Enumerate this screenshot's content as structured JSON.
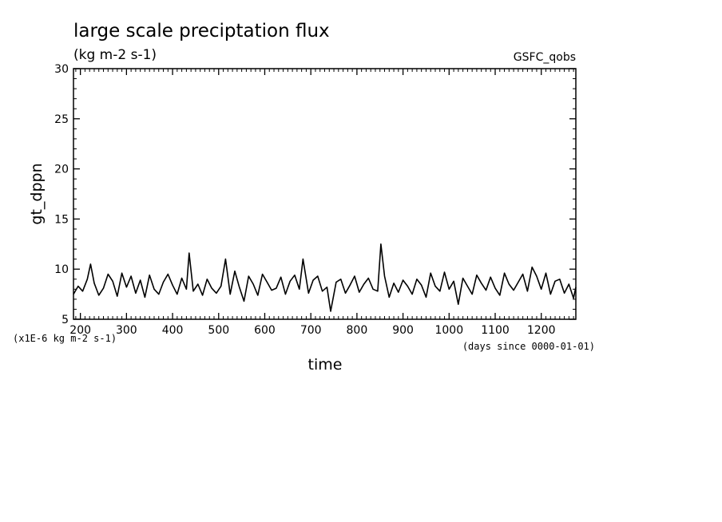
{
  "chart_data": {
    "type": "line",
    "title": "large scale preciptation flux",
    "subtitle": "(kg m-2 s-1)",
    "dataset_label": "GSFC_qobs",
    "xlabel": "time",
    "ylabel": "gt_dppn",
    "x_units_note": "(days since 0000-01-01)",
    "y_units_note": "(x1E-6 kg m-2 s-1)",
    "xlim": [
      185,
      1275
    ],
    "ylim": [
      5,
      30
    ],
    "x_ticks": [
      200,
      300,
      400,
      500,
      600,
      700,
      800,
      900,
      1000,
      1100,
      1200
    ],
    "x_tick_labels": [
      "200",
      "300",
      "400",
      "500",
      "600",
      "700",
      "800",
      "900",
      "1000",
      "1100",
      "1200"
    ],
    "y_ticks": [
      5,
      10,
      15,
      20,
      25,
      30
    ],
    "y_tick_labels": [
      "5",
      "10",
      "15",
      "20",
      "25",
      "30"
    ],
    "grid": false,
    "line_color": "#000000",
    "series": [
      {
        "x": [
          185,
          195,
          205,
          215,
          222,
          230,
          240,
          250,
          260,
          270,
          280,
          290,
          300,
          310,
          320,
          330,
          340,
          350,
          360,
          370,
          380,
          390,
          400,
          410,
          420,
          430,
          436,
          445,
          455,
          465,
          475,
          485,
          495,
          505,
          515,
          525,
          535,
          545,
          555,
          565,
          575,
          585,
          595,
          605,
          615,
          625,
          635,
          645,
          655,
          665,
          675,
          683,
          695,
          705,
          715,
          725,
          735,
          743,
          755,
          765,
          775,
          785,
          795,
          805,
          815,
          825,
          835,
          845,
          852,
          860,
          870,
          880,
          890,
          900,
          910,
          920,
          930,
          940,
          950,
          960,
          970,
          980,
          990,
          1000,
          1010,
          1020,
          1030,
          1040,
          1050,
          1060,
          1070,
          1080,
          1090,
          1100,
          1110,
          1120,
          1130,
          1140,
          1150,
          1160,
          1170,
          1180,
          1190,
          1200,
          1210,
          1220,
          1230,
          1240,
          1250,
          1260,
          1270,
          1275
        ],
        "y": [
          7.5,
          8.3,
          7.8,
          9.0,
          10.5,
          8.6,
          7.4,
          8.1,
          9.5,
          8.8,
          7.3,
          9.6,
          8.2,
          9.3,
          7.6,
          8.9,
          7.2,
          9.4,
          8.0,
          7.5,
          8.7,
          9.5,
          8.4,
          7.5,
          9.1,
          8.0,
          11.6,
          7.8,
          8.5,
          7.4,
          9.0,
          8.1,
          7.6,
          8.3,
          11.0,
          7.5,
          9.8,
          8.2,
          6.8,
          9.3,
          8.5,
          7.4,
          9.5,
          8.7,
          7.9,
          8.1,
          9.2,
          7.5,
          8.8,
          9.4,
          8.0,
          11.0,
          7.6,
          8.9,
          9.3,
          7.8,
          8.2,
          5.8,
          8.7,
          9.0,
          7.6,
          8.4,
          9.3,
          7.7,
          8.5,
          9.1,
          8.0,
          7.8,
          12.5,
          9.3,
          7.2,
          8.6,
          7.7,
          8.9,
          8.3,
          7.5,
          9.0,
          8.4,
          7.2,
          9.6,
          8.3,
          7.8,
          9.7,
          8.0,
          8.8,
          6.5,
          9.1,
          8.3,
          7.5,
          9.4,
          8.6,
          7.9,
          9.2,
          8.1,
          7.4,
          9.6,
          8.5,
          7.9,
          8.7,
          9.5,
          7.8,
          10.2,
          9.3,
          8.0,
          9.6,
          7.5,
          8.8,
          9.0,
          7.6,
          8.5,
          7.1,
          8.2
        ]
      }
    ]
  }
}
